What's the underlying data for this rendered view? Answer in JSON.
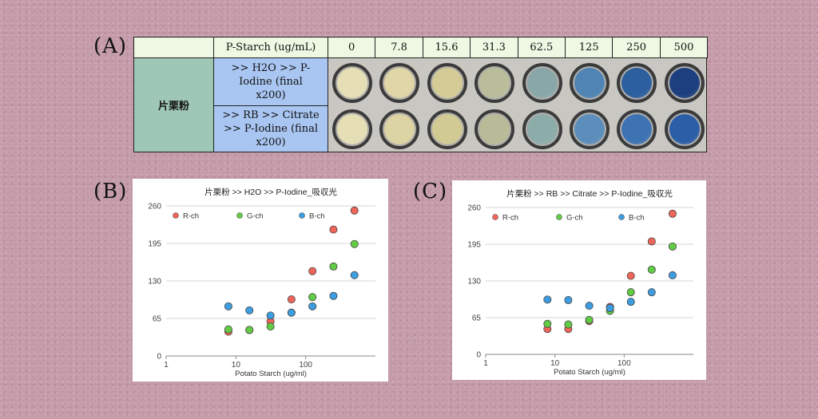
{
  "panel_a": {
    "letter": "(A)",
    "header_label": "P-Starch (ug/mL)",
    "concentrations": [
      "0",
      "7.8",
      "15.6",
      "31.3",
      "62.5",
      "125",
      "250",
      "500"
    ],
    "sample_label": "片栗粉",
    "row1_label": ">> H2O >> P-Iodine (final x200)",
    "row2_label": ">> RB >> Citrate >> P-Iodine (final x200)",
    "row1_colors": [
      "#e6dfb6",
      "#e0d6a6",
      "#d4cc94",
      "#b9bd9a",
      "#89a7a8",
      "#4f84b4",
      "#2c5f9e",
      "#1d3f7f"
    ],
    "row2_colors": [
      "#e6dfb6",
      "#ddd4a3",
      "#d1ca93",
      "#b7bb97",
      "#8cacaa",
      "#5c8ebb",
      "#3d72b3",
      "#2b5ea6"
    ]
  },
  "chart_data": [
    {
      "letter": "(B)",
      "type": "scatter",
      "title": "片栗粉 >> H2O >> P-Iodine_吸収光",
      "xlabel": "Potato Starch (ug/ml)",
      "ylabel": "",
      "x_scale": "log",
      "xlim": [
        1,
        1000
      ],
      "ylim": [
        0,
        260
      ],
      "xticks": [
        "1",
        "10",
        "100"
      ],
      "yticks": [
        "0",
        "65",
        "130",
        "195",
        "260"
      ],
      "grid": "horizontal",
      "legend": "top",
      "series": [
        {
          "name": "R-ch",
          "color": "#f0655a",
          "x": [
            7.8,
            15.6,
            31.3,
            62.5,
            125,
            250,
            500
          ],
          "y": [
            42,
            45,
            60,
            98,
            147,
            219,
            252
          ]
        },
        {
          "name": "G-ch",
          "color": "#62cc45",
          "x": [
            7.8,
            15.6,
            31.3,
            62.5,
            125,
            250,
            500
          ],
          "y": [
            46,
            45,
            51,
            75,
            102,
            155,
            194
          ]
        },
        {
          "name": "B-ch",
          "color": "#3d9de0",
          "x": [
            7.8,
            15.6,
            31.3,
            62.5,
            125,
            250,
            500
          ],
          "y": [
            86,
            79,
            70,
            75,
            86,
            104,
            140
          ]
        }
      ]
    },
    {
      "letter": "(C)",
      "type": "scatter",
      "title": "片栗粉 >> RB >> Citrate >> P-Iodine_吸収光",
      "xlabel": "Potato Starch (ug/ml)",
      "ylabel": "",
      "x_scale": "log",
      "xlim": [
        1,
        1000
      ],
      "ylim": [
        0,
        260
      ],
      "xticks": [
        "1",
        "10",
        "100"
      ],
      "yticks": [
        "0",
        "65",
        "130",
        "195",
        "260"
      ],
      "grid": "horizontal",
      "legend": "top",
      "series": [
        {
          "name": "R-ch",
          "color": "#f0655a",
          "x": [
            7.8,
            15.6,
            31.3,
            62.5,
            125,
            250,
            500
          ],
          "y": [
            45,
            45,
            59,
            84,
            139,
            200,
            249
          ]
        },
        {
          "name": "G-ch",
          "color": "#62cc45",
          "x": [
            7.8,
            15.6,
            31.3,
            62.5,
            125,
            250,
            500
          ],
          "y": [
            54,
            53,
            61,
            77,
            110,
            150,
            191
          ]
        },
        {
          "name": "B-ch",
          "color": "#3d9de0",
          "x": [
            7.8,
            15.6,
            31.3,
            62.5,
            125,
            250,
            500
          ],
          "y": [
            97,
            96,
            86,
            82,
            93,
            110,
            140
          ]
        }
      ]
    }
  ]
}
